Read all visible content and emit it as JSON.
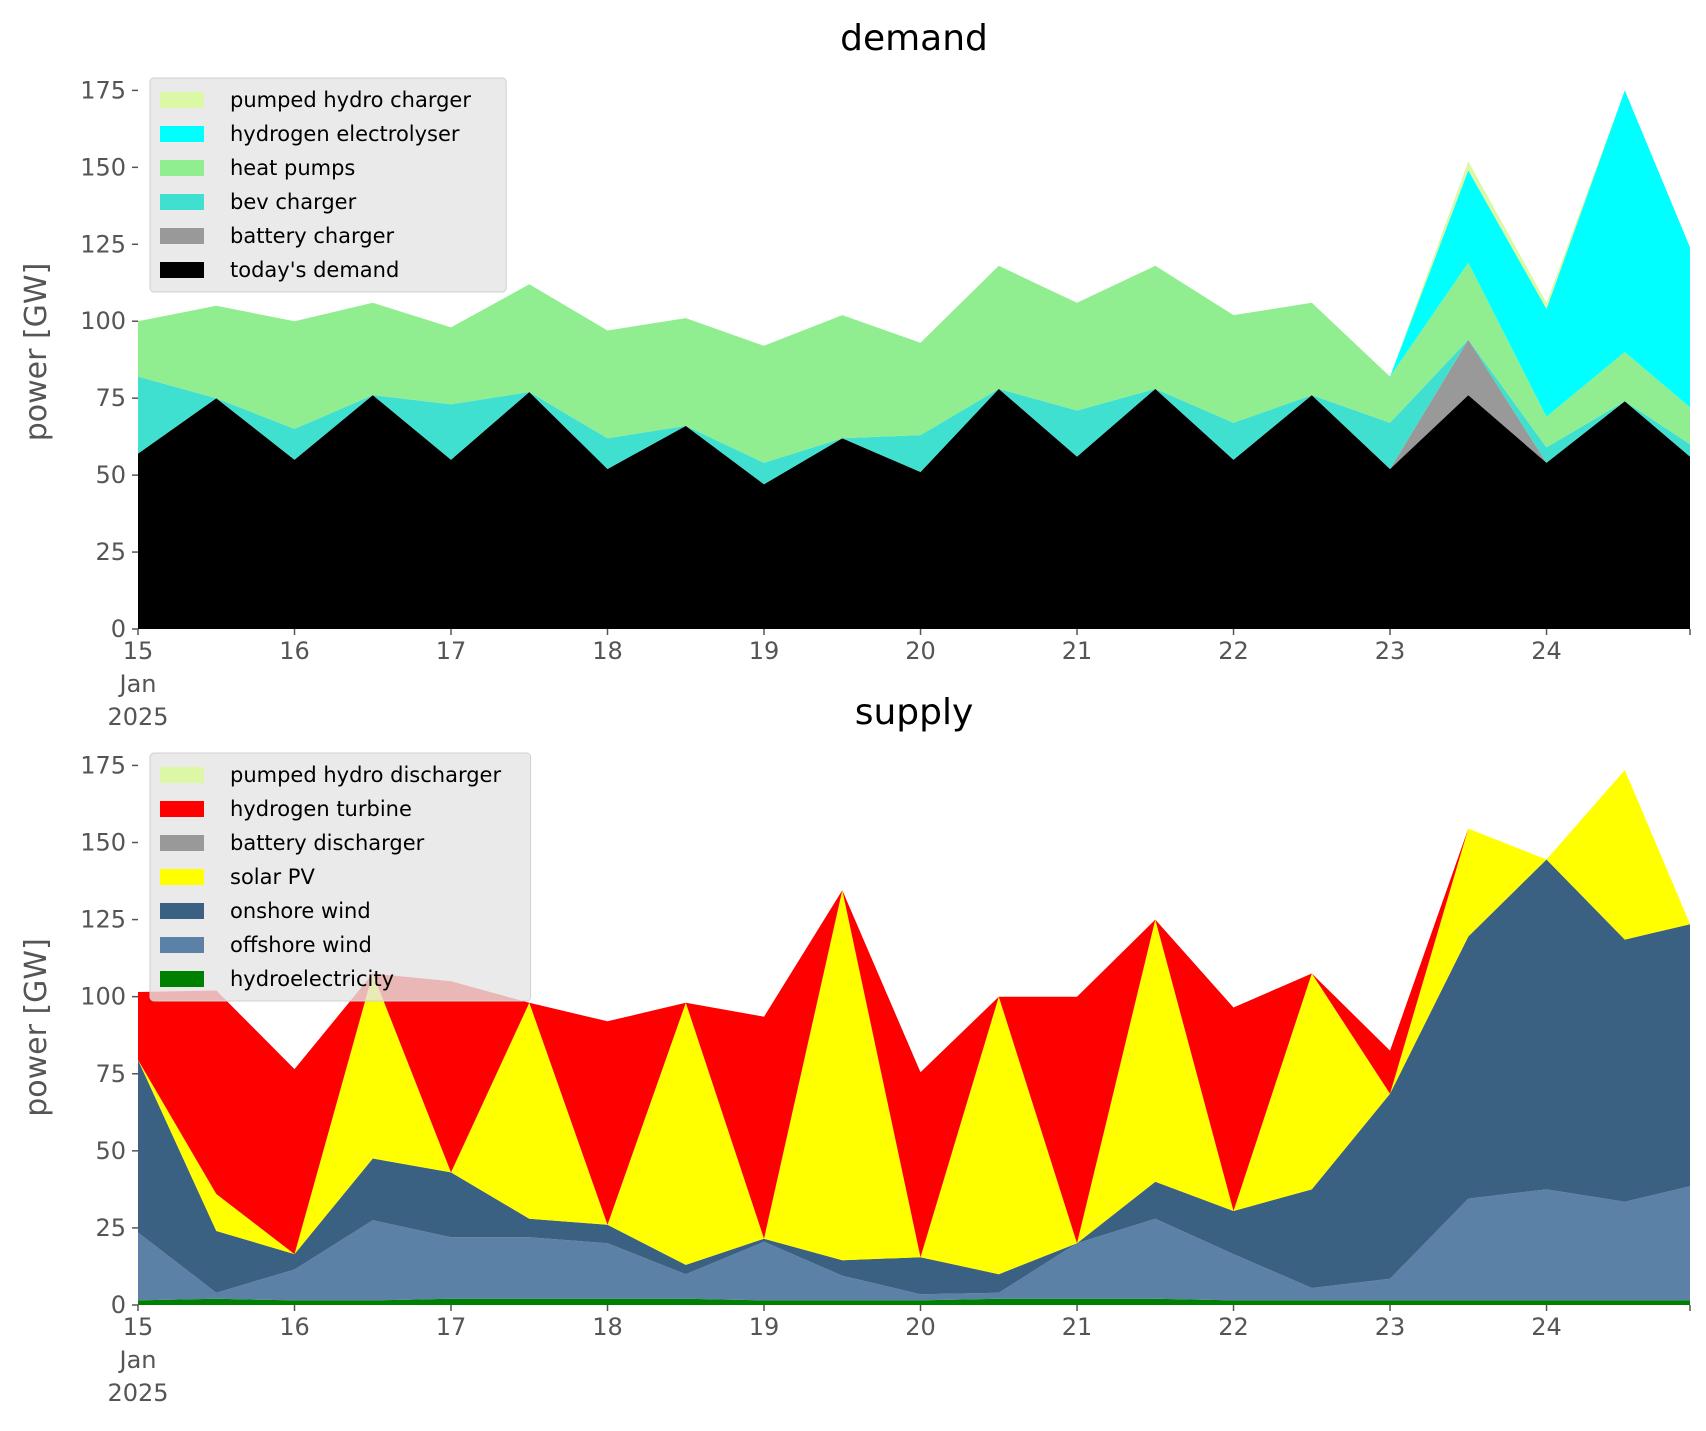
{
  "chart_data": [
    {
      "type": "area",
      "stacked": true,
      "title": "demand",
      "xlabel": "",
      "ylabel": "power [GW]",
      "xlim": [
        "2025-01-15T00:00",
        "2025-01-24T22:00"
      ],
      "ylim": [
        0,
        180
      ],
      "yticks": [
        0,
        25,
        50,
        75,
        100,
        125,
        150,
        175
      ],
      "xticks": [
        {
          "t": "2025-01-15T00:00",
          "label": "15",
          "sub": [
            "Jan",
            "2025"
          ]
        },
        {
          "t": "2025-01-16T00:00",
          "label": "16",
          "sub": []
        },
        {
          "t": "2025-01-17T00:00",
          "label": "17",
          "sub": []
        },
        {
          "t": "2025-01-18T00:00",
          "label": "18",
          "sub": []
        },
        {
          "t": "2025-01-19T00:00",
          "label": "19",
          "sub": []
        },
        {
          "t": "2025-01-20T00:00",
          "label": "20",
          "sub": []
        },
        {
          "t": "2025-01-21T00:00",
          "label": "21",
          "sub": []
        },
        {
          "t": "2025-01-22T00:00",
          "label": "22",
          "sub": []
        },
        {
          "t": "2025-01-23T00:00",
          "label": "23",
          "sub": []
        },
        {
          "t": "2025-01-24T00:00",
          "label": "24",
          "sub": []
        }
      ],
      "grid": false,
      "legend_position": "top-left",
      "x": [
        "2025-01-15T00:00",
        "2025-01-15T12:00",
        "2025-01-16T00:00",
        "2025-01-16T12:00",
        "2025-01-17T00:00",
        "2025-01-17T12:00",
        "2025-01-18T00:00",
        "2025-01-18T12:00",
        "2025-01-19T00:00",
        "2025-01-19T12:00",
        "2025-01-20T00:00",
        "2025-01-20T12:00",
        "2025-01-21T00:00",
        "2025-01-21T12:00",
        "2025-01-22T00:00",
        "2025-01-22T12:00",
        "2025-01-23T00:00",
        "2025-01-23T12:00",
        "2025-01-24T00:00",
        "2025-01-24T12:00",
        "2025-01-24T22:00"
      ],
      "series": [
        {
          "name": "today's demand",
          "color": "#000000",
          "values": [
            57,
            75,
            55,
            76,
            55,
            77,
            52,
            66,
            47,
            62,
            51,
            78,
            56,
            78,
            55,
            76,
            52,
            76,
            54,
            74,
            56
          ]
        },
        {
          "name": "battery charger",
          "color": "#999999",
          "values": [
            0,
            0,
            0,
            0,
            0,
            0,
            0,
            0,
            0,
            0,
            0,
            0,
            0,
            0,
            0,
            0,
            0,
            18,
            0,
            0,
            0
          ]
        },
        {
          "name": "bev charger",
          "color": "#40e0d0",
          "values": [
            25,
            0,
            10,
            0,
            18,
            0,
            10,
            0,
            7,
            0,
            12,
            0,
            15,
            0,
            12,
            0,
            15,
            0,
            5,
            0,
            4
          ]
        },
        {
          "name": "heat pumps",
          "color": "#90ee90",
          "values": [
            18,
            30,
            35,
            30,
            25,
            35,
            35,
            35,
            38,
            40,
            30,
            40,
            35,
            40,
            35,
            30,
            15,
            25,
            10,
            16,
            12
          ]
        },
        {
          "name": "hydrogen electrolyser",
          "color": "#00ffff",
          "values": [
            0,
            0,
            0,
            0,
            0,
            0,
            0,
            0,
            0,
            0,
            0,
            0,
            0,
            0,
            0,
            0,
            0,
            30,
            35,
            85,
            52
          ]
        },
        {
          "name": "pumped hydro charger",
          "color": "#dcf7a6",
          "values": [
            0,
            0,
            0,
            0,
            0,
            0,
            0,
            0,
            0,
            0,
            0,
            0,
            0,
            0,
            0,
            0,
            0,
            3,
            2,
            0,
            0
          ]
        }
      ]
    },
    {
      "type": "area",
      "stacked": true,
      "title": "supply",
      "xlabel": "",
      "ylabel": "power [GW]",
      "xlim": [
        "2025-01-15T00:00",
        "2025-01-24T22:00"
      ],
      "ylim": [
        0,
        180
      ],
      "yticks": [
        0,
        25,
        50,
        75,
        100,
        125,
        150,
        175
      ],
      "xticks": [
        {
          "t": "2025-01-15T00:00",
          "label": "15",
          "sub": [
            "Jan",
            "2025"
          ]
        },
        {
          "t": "2025-01-16T00:00",
          "label": "16",
          "sub": []
        },
        {
          "t": "2025-01-17T00:00",
          "label": "17",
          "sub": []
        },
        {
          "t": "2025-01-18T00:00",
          "label": "18",
          "sub": []
        },
        {
          "t": "2025-01-19T00:00",
          "label": "19",
          "sub": []
        },
        {
          "t": "2025-01-20T00:00",
          "label": "20",
          "sub": []
        },
        {
          "t": "2025-01-21T00:00",
          "label": "21",
          "sub": []
        },
        {
          "t": "2025-01-22T00:00",
          "label": "22",
          "sub": []
        },
        {
          "t": "2025-01-23T00:00",
          "label": "23",
          "sub": []
        },
        {
          "t": "2025-01-24T00:00",
          "label": "24",
          "sub": []
        }
      ],
      "grid": false,
      "legend_position": "top-left",
      "x": [
        "2025-01-15T00:00",
        "2025-01-15T12:00",
        "2025-01-16T00:00",
        "2025-01-16T12:00",
        "2025-01-17T00:00",
        "2025-01-17T12:00",
        "2025-01-18T00:00",
        "2025-01-18T12:00",
        "2025-01-19T00:00",
        "2025-01-19T12:00",
        "2025-01-20T00:00",
        "2025-01-20T12:00",
        "2025-01-21T00:00",
        "2025-01-21T12:00",
        "2025-01-22T00:00",
        "2025-01-22T12:00",
        "2025-01-23T00:00",
        "2025-01-23T12:00",
        "2025-01-24T00:00",
        "2025-01-24T12:00",
        "2025-01-24T22:00"
      ],
      "series": [
        {
          "name": "hydroelectricity",
          "color": "#008000",
          "values": [
            1.5,
            2,
            1.5,
            1.5,
            2,
            2,
            2,
            2,
            1.5,
            1.5,
            1.5,
            2,
            2,
            2,
            1.5,
            1.5,
            1.5,
            1.5,
            1.5,
            1.5,
            1.5
          ]
        },
        {
          "name": "offshore wind",
          "color": "#5b82a6",
          "values": [
            22,
            2,
            10,
            26,
            20,
            20,
            18,
            8,
            19,
            8,
            2,
            2,
            18,
            26,
            15,
            4,
            7,
            33,
            36,
            32,
            37
          ]
        },
        {
          "name": "onshore wind",
          "color": "#3b6182",
          "values": [
            56,
            20,
            5,
            20,
            21,
            6,
            6,
            3,
            1,
            5,
            12,
            6,
            0,
            12,
            14,
            32,
            60,
            85,
            107,
            85,
            85
          ]
        },
        {
          "name": "solar PV",
          "color": "#ffff00",
          "values": [
            0,
            12,
            0,
            60,
            0,
            70,
            0,
            85,
            0,
            120,
            0,
            90,
            0,
            85,
            0,
            70,
            0,
            35,
            0,
            55,
            0
          ]
        },
        {
          "name": "battery discharger",
          "color": "#999999",
          "values": [
            0,
            0,
            0,
            0,
            0,
            0,
            0,
            0,
            0,
            0,
            0,
            0,
            0,
            0,
            0,
            0,
            0,
            0,
            0,
            0,
            0
          ]
        },
        {
          "name": "hydrogen turbine",
          "color": "#ff0000",
          "values": [
            22,
            66,
            60,
            0,
            62,
            0,
            66,
            0,
            72,
            0,
            60,
            0,
            80,
            0,
            66,
            0,
            14,
            0,
            0,
            0,
            0
          ]
        },
        {
          "name": "pumped hydro discharger",
          "color": "#dcf7a6",
          "values": [
            0,
            0,
            0,
            0,
            0,
            0,
            0,
            0,
            0,
            0,
            0,
            0,
            0,
            0,
            0,
            0,
            0,
            0,
            0,
            0,
            0
          ]
        }
      ]
    }
  ]
}
